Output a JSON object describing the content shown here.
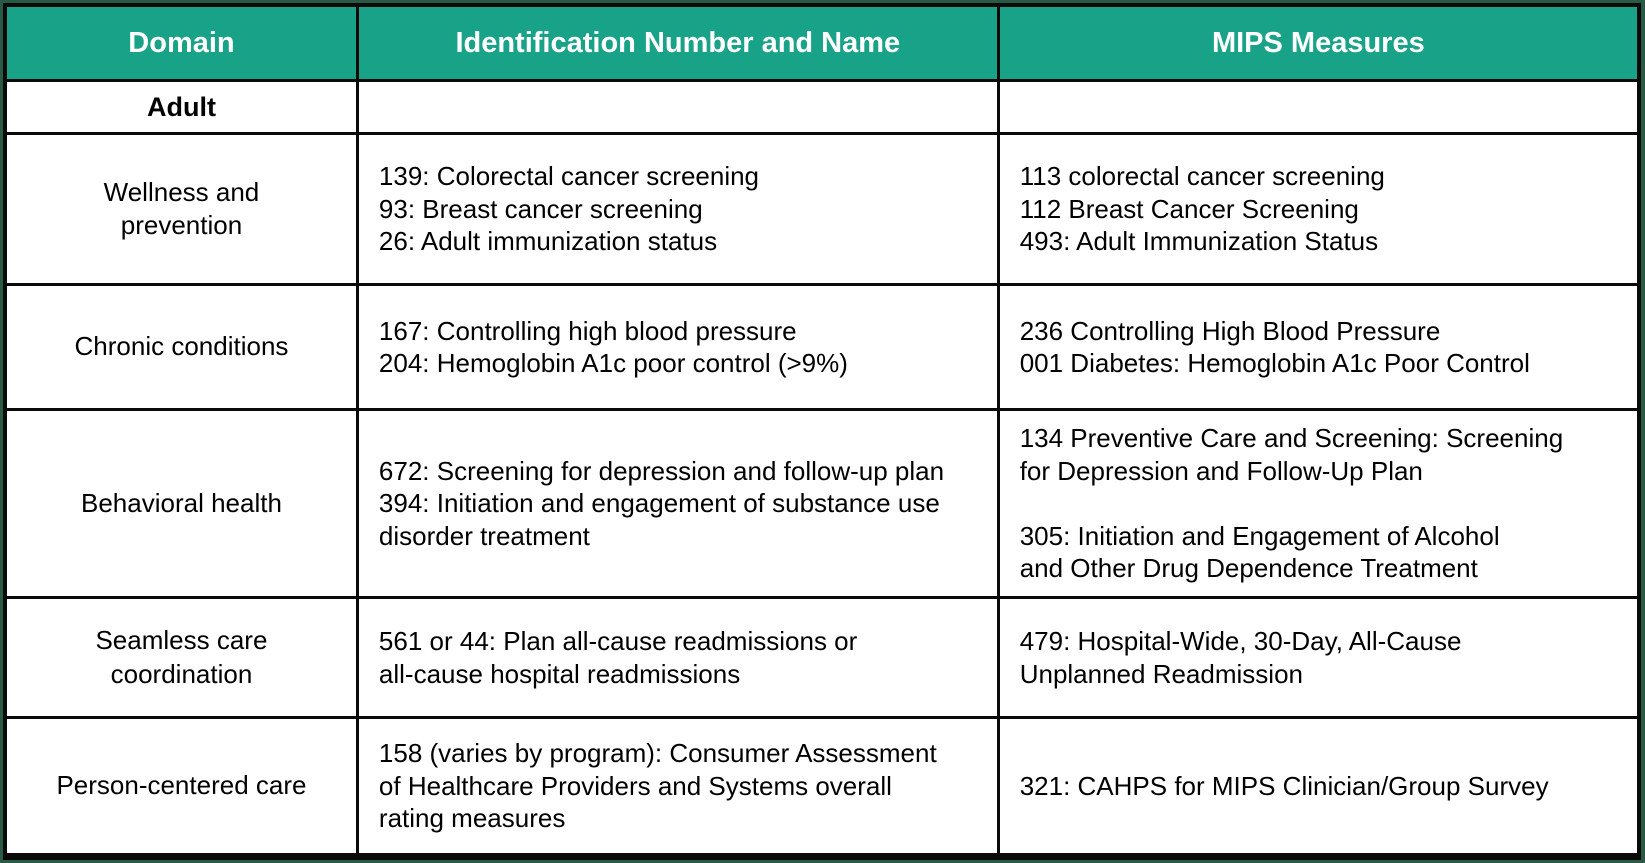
{
  "table": {
    "colors": {
      "header_bg": "#18a287",
      "header_text": "#ffffff",
      "grid_border": "#0a0a0a",
      "page_edge": "#2a5a46",
      "body_bg": "#ffffff"
    },
    "headers": [
      {
        "label": "Domain"
      },
      {
        "label": "Identification Number and Name"
      },
      {
        "label": "MIPS Measures"
      }
    ],
    "section_label": "Adult",
    "rows": [
      {
        "domain": "Wellness and prevention",
        "id_lines": [
          "139: Colorectal cancer screening",
          "93: Breast cancer screening",
          "26: Adult immunization status"
        ],
        "mips_lines": [
          "113 colorectal cancer screening",
          "112 Breast Cancer Screening",
          "493: Adult Immunization Status"
        ]
      },
      {
        "domain": "Chronic conditions",
        "id_lines": [
          "167: Controlling high blood pressure",
          "204: Hemoglobin A1c poor control (>9%)"
        ],
        "mips_lines": [
          "236 Controlling High Blood Pressure",
          "001 Diabetes: Hemoglobin A1c Poor Control"
        ]
      },
      {
        "domain": "Behavioral health",
        "id_lines": [
          "672: Screening for depression and follow-up plan",
          "394: Initiation and engagement of substance use",
          "disorder treatment"
        ],
        "mips_lines": [
          "134 Preventive Care and Screening: Screening",
          "for Depression and Follow-Up Plan",
          "",
          "305: Initiation and Engagement of Alcohol",
          "and Other Drug Dependence Treatment"
        ]
      },
      {
        "domain": "Seamless care coordination",
        "id_lines": [
          "561 or 44: Plan all-cause readmissions or",
          "all-cause hospital readmissions"
        ],
        "mips_lines": [
          "479: Hospital-Wide, 30-Day, All-Cause",
          "Unplanned Readmission"
        ]
      },
      {
        "domain": "Person-centered care",
        "id_lines": [
          "158 (varies by program): Consumer Assessment",
          "of Healthcare Providers and Systems overall",
          "rating measures"
        ],
        "mips_lines": [
          "321: CAHPS for MIPS Clinician/Group Survey"
        ]
      }
    ]
  }
}
